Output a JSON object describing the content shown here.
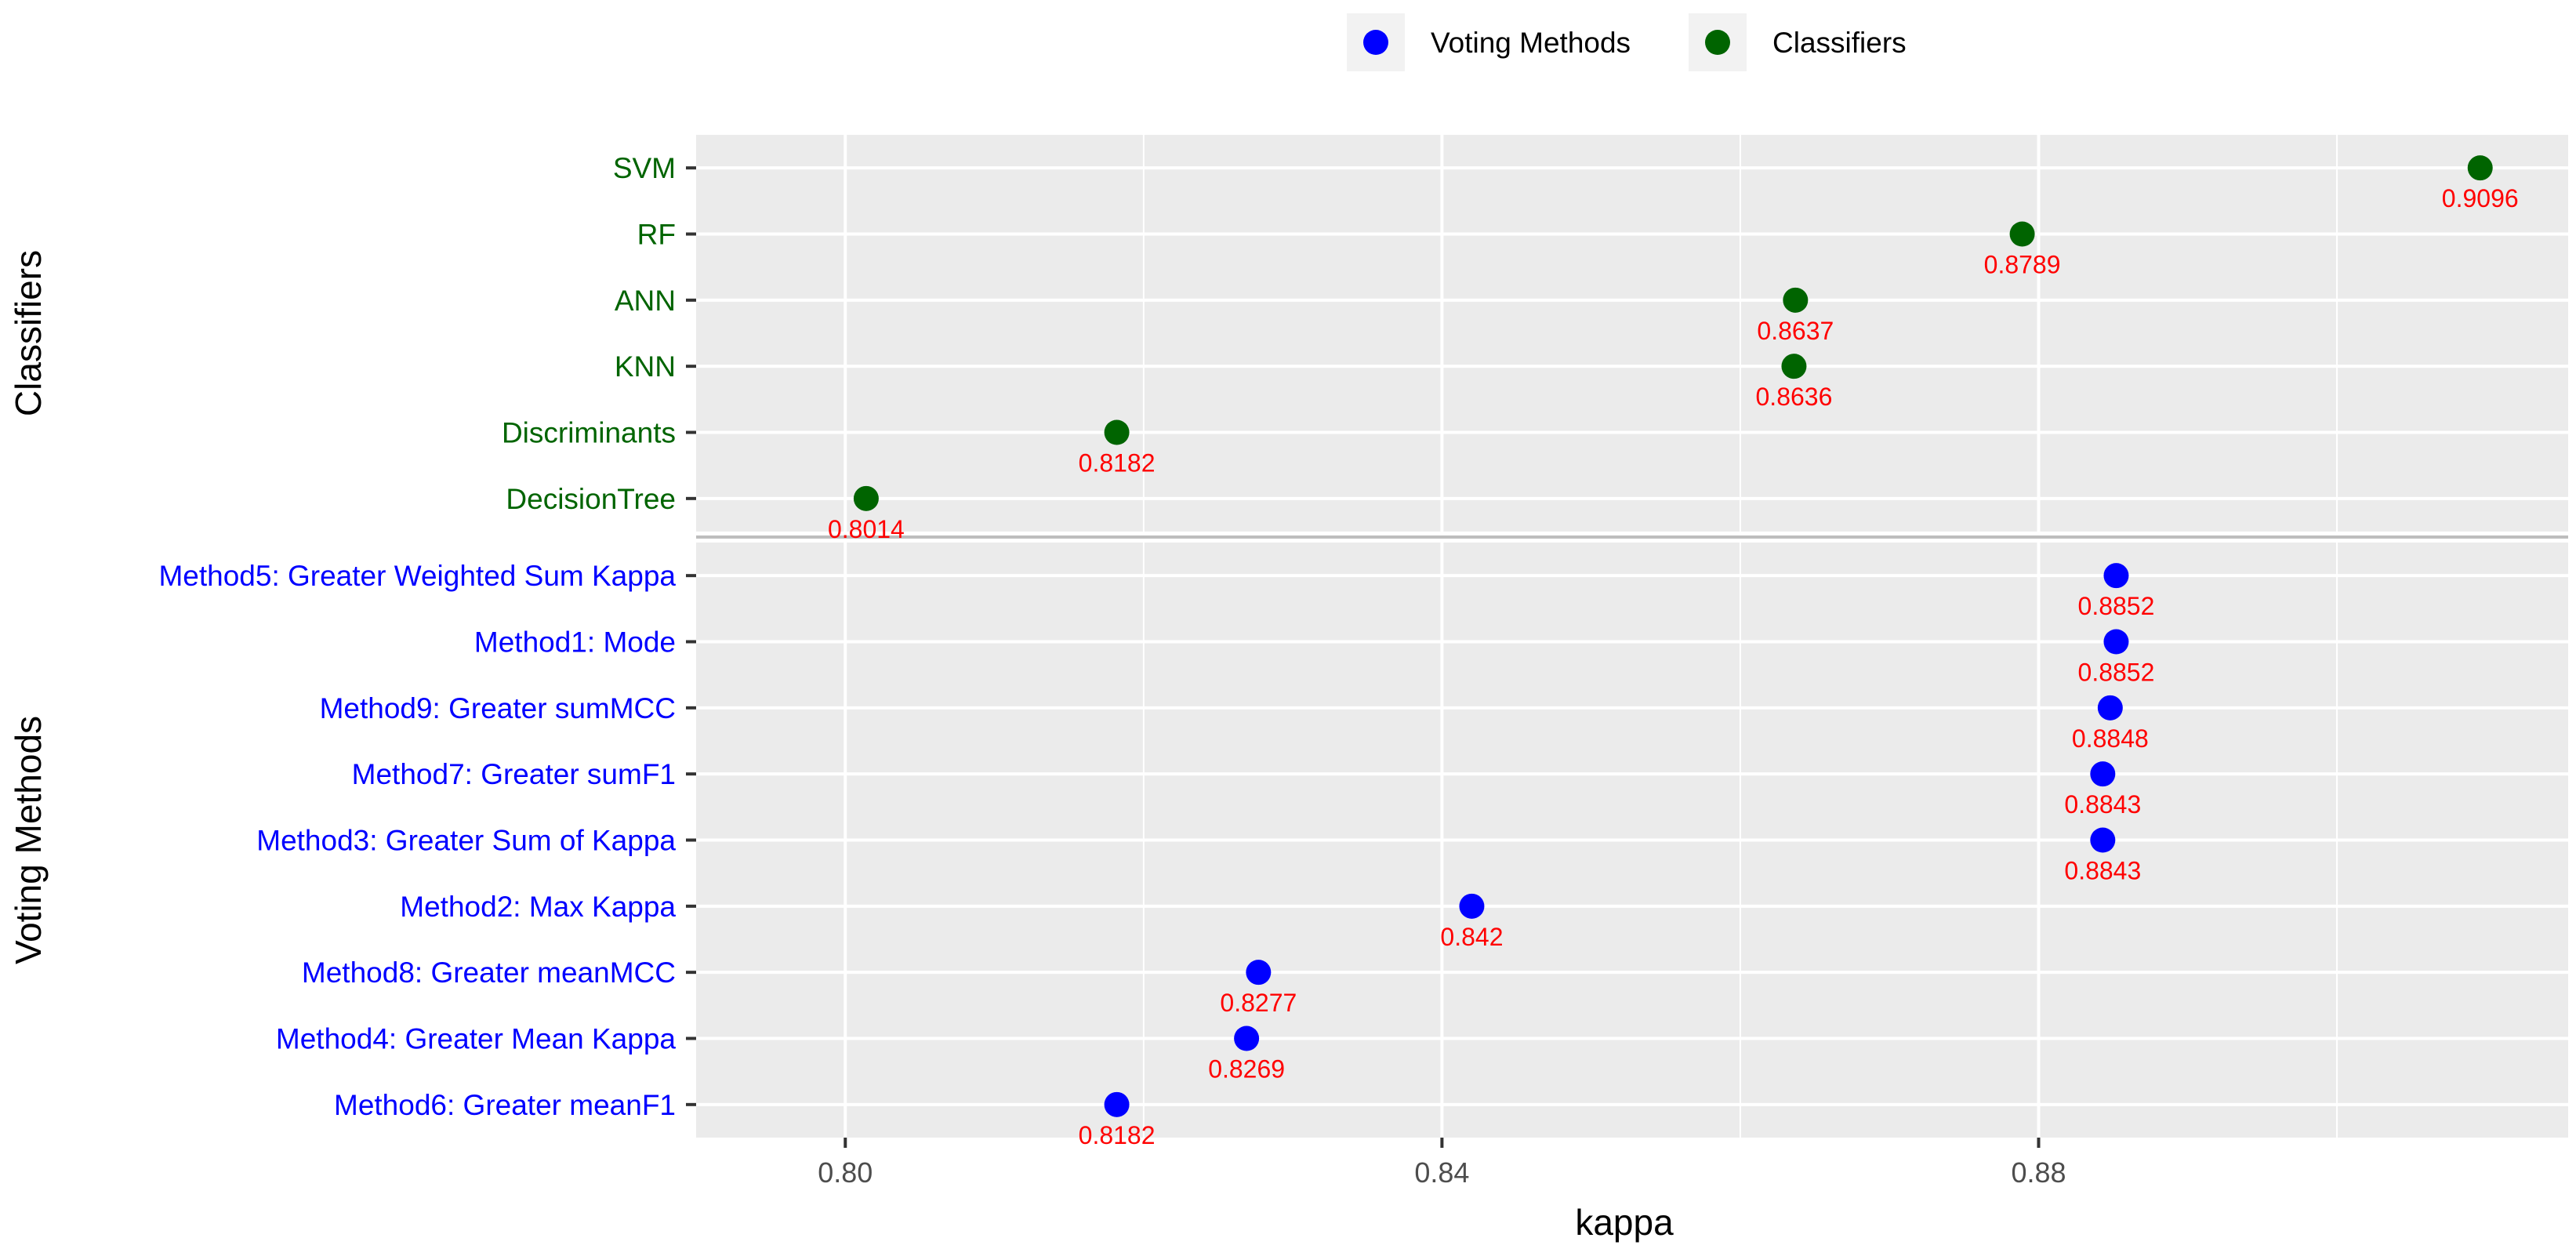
{
  "chart_data": {
    "type": "scatter",
    "xlabel": "kappa",
    "ylabel": "",
    "xlim": [
      0.79,
      0.9155
    ],
    "x_ticks": [
      "0.80",
      "0.84",
      "0.88"
    ],
    "grid": true,
    "legend_position": "top",
    "legend": [
      {
        "label": "Voting Methods",
        "color": "#0000ff"
      },
      {
        "label": "Classifiers",
        "color": "#006400"
      }
    ],
    "label_color": "#ff0000",
    "panels": [
      {
        "strip": "Classifiers",
        "color": "#006400",
        "points": [
          {
            "name": "SVM",
            "value": 0.9096,
            "label": "0.9096"
          },
          {
            "name": "RF",
            "value": 0.8789,
            "label": "0.8789"
          },
          {
            "name": "ANN",
            "value": 0.8637,
            "label": "0.8637"
          },
          {
            "name": "KNN",
            "value": 0.8636,
            "label": "0.8636"
          },
          {
            "name": "Discriminants",
            "value": 0.8182,
            "label": "0.8182"
          },
          {
            "name": "DecisionTree",
            "value": 0.8014,
            "label": "0.8014"
          }
        ]
      },
      {
        "strip": "Voting Methods",
        "color": "#0000ff",
        "points": [
          {
            "name": "Method5: Greater Weighted Sum Kappa",
            "value": 0.8852,
            "label": "0.8852"
          },
          {
            "name": "Method1: Mode",
            "value": 0.8852,
            "label": "0.8852"
          },
          {
            "name": "Method9: Greater sumMCC",
            "value": 0.8848,
            "label": "0.8848"
          },
          {
            "name": "Method7: Greater sumF1",
            "value": 0.8843,
            "label": "0.8843"
          },
          {
            "name": "Method3: Greater Sum of Kappa",
            "value": 0.8843,
            "label": "0.8843"
          },
          {
            "name": "Method2: Max Kappa",
            "value": 0.842,
            "label": "0.842"
          },
          {
            "name": "Method8: Greater meanMCC",
            "value": 0.8277,
            "label": "0.8277"
          },
          {
            "name": "Method4: Greater Mean Kappa",
            "value": 0.8269,
            "label": "0.8269"
          },
          {
            "name": "Method6: Greater meanF1",
            "value": 0.8182,
            "label": "0.8182"
          }
        ]
      }
    ]
  }
}
